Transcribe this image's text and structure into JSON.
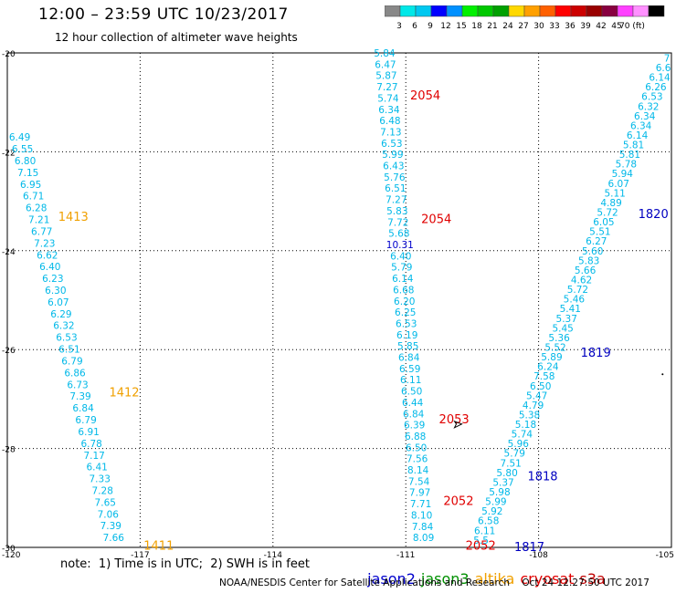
{
  "title": "12:00 – 23:59 UTC 10/23/2017",
  "subtitle": "12 hour collection of altimeter wave heights",
  "color_scale": {
    "colors": [
      "#888888",
      "#00e8e8",
      "#00c8f0",
      "#0000ff",
      "#0090ff",
      "#00f000",
      "#00c800",
      "#00a000",
      "#ffd800",
      "#ffa000",
      "#ff6000",
      "#ff0000",
      "#cc0000",
      "#990000",
      "#880040",
      "#ff40ff",
      "#ff90ff",
      "#000000"
    ],
    "labels": [
      "3",
      "6",
      "9",
      "12",
      "15",
      "18",
      "21",
      "24",
      "27",
      "30",
      "33",
      "36",
      "39",
      "42",
      "45",
      "70 (ft)"
    ]
  },
  "axes": {
    "x_ticks": [
      "-120",
      "-117",
      "-114",
      "-111",
      "-108",
      "-105"
    ],
    "y_ticks": [
      "-20",
      "-22",
      "-24",
      "-26",
      "-28",
      "-30"
    ],
    "x_range": [
      -120,
      -105
    ],
    "y_range": [
      -30,
      -20
    ]
  },
  "tracks": [
    {
      "name": "left",
      "values": [
        "6.49",
        "6.55",
        "6.80",
        "7.15",
        "6.95",
        "6.71",
        "6.28",
        "7.21",
        "6.77",
        "7.23",
        "6.62",
        "6.40",
        "6.23",
        "6.30",
        "6.07",
        "6.29",
        "6.32",
        "6.53",
        "6.51",
        "6.79",
        "6.86",
        "6.73",
        "7.39",
        "6.84",
        "6.79",
        "6.91",
        "6.78",
        "7.17",
        "6.41",
        "7.33",
        "7.28",
        "7.65",
        "7.06",
        "7.39",
        "7.66"
      ],
      "lon_top": -119.72,
      "lat_top": -21.7,
      "lon_bottom": -117.6,
      "lat_bottom": -29.8
    },
    {
      "name": "middle",
      "values": [
        "5.84",
        "6.47",
        "5.87",
        "7.27",
        "5.74",
        "6.34",
        "6.48",
        "7.13",
        "6.53",
        "5.99",
        "6.43",
        "5.76",
        "6.51",
        "7.27",
        "5.83",
        "7.72",
        "5.68",
        "10.31",
        "6.40",
        "5.79",
        "6.14",
        "6.68",
        "6.20",
        "6.25",
        "6.53",
        "6.19",
        "5.85",
        "6.84",
        "6.59",
        "6.11",
        "6.50",
        "6.44",
        "6.84",
        "6.39",
        "6.88",
        "6.50",
        "7.56",
        "8.14",
        "7.54",
        "7.97",
        "7.71",
        "8.10",
        "7.84",
        "8.09"
      ],
      "lon_top": -111.48,
      "lat_top": -20.0,
      "lon_bottom": -110.6,
      "lat_bottom": -29.8
    },
    {
      "name": "right",
      "values": [
        "7",
        "6.6",
        "6.14",
        "6.26",
        "6.53",
        "6.32",
        "6.34",
        "6.34",
        "6.14",
        "5.81",
        "5.81",
        "5.78",
        "5.94",
        "6.07",
        "5.11",
        "4.89",
        "5.72",
        "6.05",
        "5.51",
        "6.27",
        "5.60",
        "5.83",
        "5.66",
        "4.62",
        "5.72",
        "5.46",
        "5.41",
        "5.37",
        "5.45",
        "5.36",
        "5.52",
        "5.89",
        "6.24",
        "7.58",
        "6.50",
        "5.47",
        "4.79",
        "5.38",
        "5.18",
        "5.74",
        "5.96",
        "5.79",
        "7.51",
        "5.80",
        "5.37",
        "5.98",
        "5.99",
        "5.92",
        "6.58",
        "6.11",
        "5.5"
      ],
      "lon_top": -105.1,
      "lat_top": -20.1,
      "lon_bottom": -109.3,
      "lat_bottom": -29.85
    }
  ],
  "time_labels": [
    {
      "text": "1413",
      "color": "#f0a000",
      "lon": -118.85,
      "lat": -23.3
    },
    {
      "text": "1412",
      "color": "#f0a000",
      "lon": -117.7,
      "lat": -26.85
    },
    {
      "text": "1411",
      "color": "#f0a000",
      "lon": -116.92,
      "lat": -29.95
    },
    {
      "text": "2054",
      "color": "#e00000",
      "lon": -110.9,
      "lat": -20.85
    },
    {
      "text": "2054",
      "color": "#e00000",
      "lon": -110.65,
      "lat": -23.35
    },
    {
      "text": "2053",
      "color": "#e00000",
      "lon": -110.25,
      "lat": -27.4
    },
    {
      "text": "2052",
      "color": "#e00000",
      "lon": -110.15,
      "lat": -29.05
    },
    {
      "text": "2052",
      "color": "#e00000",
      "lon": -109.65,
      "lat": -29.95
    },
    {
      "text": "1820",
      "color": "#0000c0",
      "lon": -105.75,
      "lat": -23.25
    },
    {
      "text": "1819",
      "color": "#0000c0",
      "lon": -107.05,
      "lat": -26.05
    },
    {
      "text": "1818",
      "color": "#0000c0",
      "lon": -108.25,
      "lat": -28.55
    },
    {
      "text": "1817",
      "color": "#0000c0",
      "lon": -108.55,
      "lat": -29.98
    }
  ],
  "note": "note:  1) Time is in UTC;  2) SWH is in feet",
  "satellites": [
    {
      "name": "jason2",
      "color": "#0000cc"
    },
    {
      "name": "jason3",
      "color": "#009000"
    },
    {
      "name": "altika",
      "color": "#f0a000"
    },
    {
      "name": "cryosat",
      "color": "#e00000"
    },
    {
      "name": "s3a",
      "color": "#c00000"
    }
  ],
  "footer": "NOAA/NESDIS Center for Satellite Applications and Research    Oct 24 12:27:50 UTC 2017"
}
